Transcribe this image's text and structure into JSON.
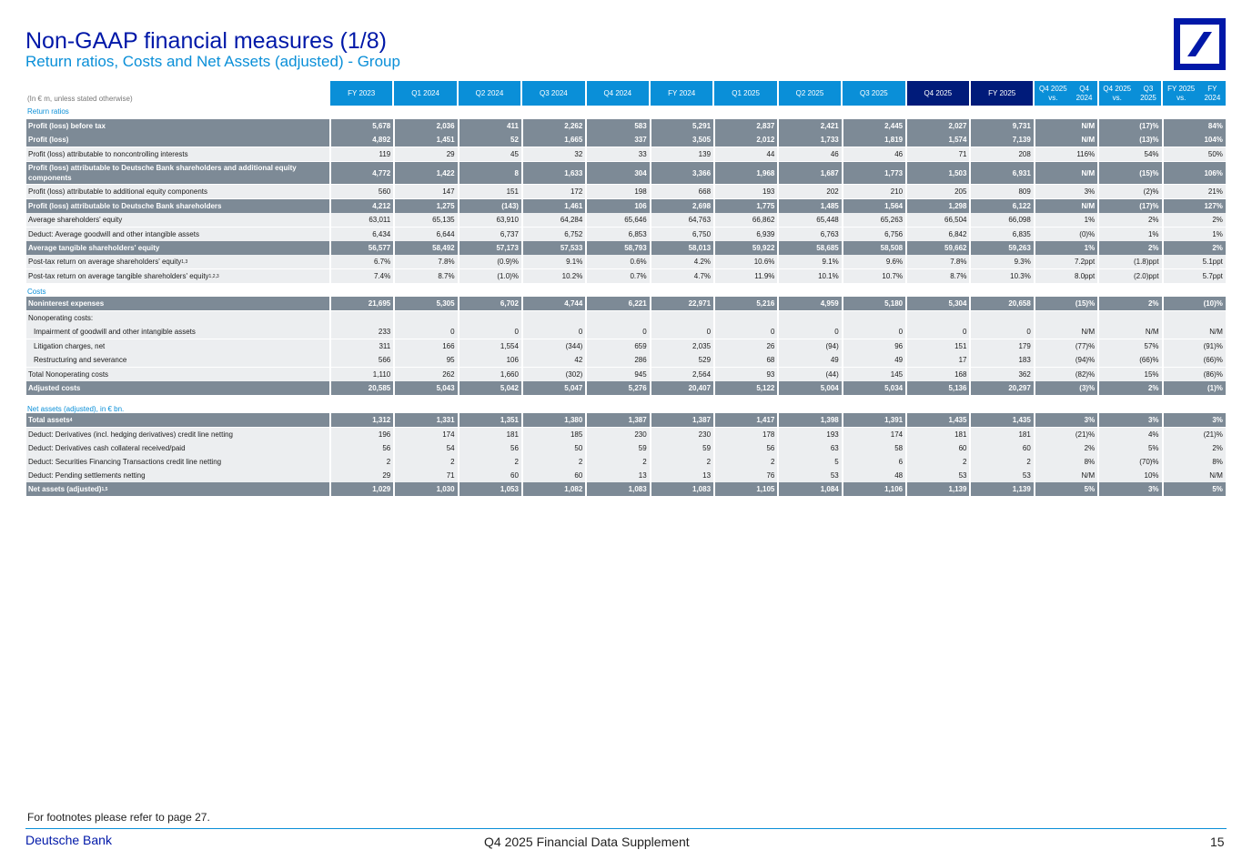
{
  "header": {
    "title": "Non-GAAP financial measures (1/8)",
    "subtitle": "Return ratios, Costs and Net Assets (adjusted) - Group",
    "unit_note": "(In € m, unless stated otherwise)"
  },
  "columns": [
    "FY 2023",
    "Q1 2024",
    "Q2 2024",
    "Q3 2024",
    "Q4 2024",
    "FY 2024",
    "Q1 2025",
    "Q2 2025",
    "Q3 2025",
    "Q4 2025",
    "FY 2025",
    [
      "Q4 2025 vs.",
      "Q4 2024"
    ],
    [
      "Q4 2025 vs.",
      "Q3 2025"
    ],
    [
      "FY 2025 vs.",
      "FY 2024"
    ]
  ],
  "sections": {
    "return_ratios": "Return ratios",
    "costs": "Costs",
    "net_assets": "Net assets (adjusted), in € bn."
  },
  "rows": [
    {
      "label": "Profit (loss) before tax",
      "style": "bold",
      "values": [
        "5,678",
        "2,036",
        "411",
        "2,262",
        "583",
        "5,291",
        "2,837",
        "2,421",
        "2,445",
        "2,027",
        "9,731",
        "N/M",
        "(17)%",
        "84%"
      ]
    },
    {
      "label": "Profit (loss)",
      "style": "bold",
      "values": [
        "4,892",
        "1,451",
        "52",
        "1,665",
        "337",
        "3,505",
        "2,012",
        "1,733",
        "1,819",
        "1,574",
        "7,139",
        "N/M",
        "(13)%",
        "104%"
      ]
    },
    {
      "label": "Profit (loss) attributable to noncontrolling interests",
      "style": "light",
      "values": [
        "119",
        "29",
        "45",
        "32",
        "33",
        "139",
        "44",
        "46",
        "46",
        "71",
        "208",
        "116%",
        "54%",
        "50%"
      ]
    },
    {
      "label": "Profit (loss) attributable to Deutsche Bank shareholders and additional equity components",
      "style": "bold",
      "tall": true,
      "values": [
        "4,772",
        "1,422",
        "8",
        "1,633",
        "304",
        "3,366",
        "1,968",
        "1,687",
        "1,773",
        "1,503",
        "6,931",
        "N/M",
        "(15)%",
        "106%"
      ]
    },
    {
      "label": "Profit (loss) attributable to additional equity components",
      "style": "light",
      "values": [
        "560",
        "147",
        "151",
        "172",
        "198",
        "668",
        "193",
        "202",
        "210",
        "205",
        "809",
        "3%",
        "(2)%",
        "21%"
      ]
    },
    {
      "label": "Profit (loss) attributable to Deutsche Bank shareholders",
      "style": "bold",
      "values": [
        "4,212",
        "1,275",
        "(143)",
        "1,461",
        "106",
        "2,698",
        "1,775",
        "1,485",
        "1,564",
        "1,298",
        "6,122",
        "N/M",
        "(17)%",
        "127%"
      ]
    },
    {
      "label": "Average shareholders' equity",
      "style": "light",
      "values": [
        "63,011",
        "65,135",
        "63,910",
        "64,284",
        "65,646",
        "64,763",
        "66,862",
        "65,448",
        "65,263",
        "66,504",
        "66,098",
        "1%",
        "2%",
        "2%"
      ]
    },
    {
      "label": "Deduct: Average goodwill and other intangible assets",
      "style": "light",
      "values": [
        "6,434",
        "6,644",
        "6,737",
        "6,752",
        "6,853",
        "6,750",
        "6,939",
        "6,763",
        "6,756",
        "6,842",
        "6,835",
        "(0)%",
        "1%",
        "1%"
      ]
    },
    {
      "label": "Average tangible shareholders' equity",
      "style": "bold",
      "values": [
        "56,577",
        "58,492",
        "57,173",
        "57,533",
        "58,793",
        "58,013",
        "59,922",
        "58,685",
        "58,508",
        "59,662",
        "59,263",
        "1%",
        "2%",
        "2%"
      ]
    },
    {
      "label": "Post-tax return on average shareholders' equity",
      "sup": "1,3",
      "style": "light",
      "values": [
        "6.7%",
        "7.8%",
        "(0.9)%",
        "9.1%",
        "0.6%",
        "4.2%",
        "10.6%",
        "9.1%",
        "9.6%",
        "7.8%",
        "9.3%",
        "7.2ppt",
        "(1.8)ppt",
        "5.1ppt"
      ]
    },
    {
      "label": "Post-tax return on average tangible shareholders' equity",
      "sup": "1,2,3",
      "style": "light",
      "values": [
        "7.4%",
        "8.7%",
        "(1.0)%",
        "10.2%",
        "0.7%",
        "4.7%",
        "11.9%",
        "10.1%",
        "10.7%",
        "8.7%",
        "10.3%",
        "8.0ppt",
        "(2.0)ppt",
        "5.7ppt"
      ]
    },
    {
      "label": "Noninterest expenses",
      "style": "bold",
      "values": [
        "21,695",
        "5,305",
        "6,702",
        "4,744",
        "6,221",
        "22,971",
        "5,216",
        "4,959",
        "5,180",
        "5,304",
        "20,658",
        "(15)%",
        "2%",
        "(10)%"
      ]
    },
    {
      "label": "Nonoperating costs:",
      "style": "empty",
      "values": [
        "",
        "",
        "",
        "",
        "",
        "",
        "",
        "",
        "",
        "",
        "",
        "",
        "",
        ""
      ]
    },
    {
      "label": "Impairment of goodwill and other intangible assets",
      "style": "light",
      "indent": true,
      "values": [
        "233",
        "0",
        "0",
        "0",
        "0",
        "0",
        "0",
        "0",
        "0",
        "0",
        "0",
        "N/M",
        "N/M",
        "N/M"
      ]
    },
    {
      "label": "Litigation charges, net",
      "style": "light",
      "indent": true,
      "values": [
        "311",
        "166",
        "1,554",
        "(344)",
        "659",
        "2,035",
        "26",
        "(94)",
        "96",
        "151",
        "179",
        "(77)%",
        "57%",
        "(91)%"
      ]
    },
    {
      "label": "Restructuring and severance",
      "style": "light",
      "indent": true,
      "values": [
        "566",
        "95",
        "106",
        "42",
        "286",
        "529",
        "68",
        "49",
        "49",
        "17",
        "183",
        "(94)%",
        "(66)%",
        "(66)%"
      ]
    },
    {
      "label": "Total Nonoperating costs",
      "style": "light",
      "values": [
        "1,110",
        "262",
        "1,660",
        "(302)",
        "945",
        "2,564",
        "93",
        "(44)",
        "145",
        "168",
        "362",
        "(82)%",
        "15%",
        "(86)%"
      ]
    },
    {
      "label": "Adjusted costs",
      "style": "bold",
      "values": [
        "20,585",
        "5,043",
        "5,042",
        "5,047",
        "5,276",
        "20,407",
        "5,122",
        "5,004",
        "5,034",
        "5,136",
        "20,297",
        "(3)%",
        "2%",
        "(1)%"
      ]
    },
    {
      "label": "Total assets",
      "sup": "4",
      "style": "bold",
      "values": [
        "1,312",
        "1,331",
        "1,351",
        "1,380",
        "1,387",
        "1,387",
        "1,417",
        "1,398",
        "1,391",
        "1,435",
        "1,435",
        "3%",
        "3%",
        "3%"
      ]
    },
    {
      "label": "Deduct: Derivatives (incl. hedging derivatives) credit line netting",
      "style": "light",
      "values": [
        "196",
        "174",
        "181",
        "185",
        "230",
        "230",
        "178",
        "193",
        "174",
        "181",
        "181",
        "(21)%",
        "4%",
        "(21)%"
      ]
    },
    {
      "label": "Deduct: Derivatives cash collateral received/paid",
      "style": "light",
      "values": [
        "56",
        "54",
        "56",
        "50",
        "59",
        "59",
        "56",
        "63",
        "58",
        "60",
        "60",
        "2%",
        "5%",
        "2%"
      ]
    },
    {
      "label": "Deduct: Securities Financing Transactions credit line netting",
      "style": "light",
      "values": [
        "2",
        "2",
        "2",
        "2",
        "2",
        "2",
        "2",
        "5",
        "6",
        "2",
        "2",
        "8%",
        "(70)%",
        "8%"
      ]
    },
    {
      "label": "Deduct: Pending settlements netting",
      "style": "light",
      "values": [
        "29",
        "71",
        "60",
        "60",
        "13",
        "13",
        "76",
        "53",
        "48",
        "53",
        "53",
        "N/M",
        "10%",
        "N/M"
      ]
    },
    {
      "label": "Net assets (adjusted)",
      "sup": "1,5",
      "style": "bold",
      "values": [
        "1,029",
        "1,030",
        "1,053",
        "1,082",
        "1,083",
        "1,083",
        "1,105",
        "1,084",
        "1,106",
        "1,139",
        "1,139",
        "5%",
        "3%",
        "5%"
      ]
    }
  ],
  "footer": {
    "note": "For footnotes please refer to page 27.",
    "brand": "Deutsche Bank",
    "document": "Q4 2025 Financial Data Supplement",
    "page": "15"
  },
  "colors": {
    "accent": "#0a8fd8",
    "brand": "#0018a8",
    "bold_row": "#7d8a96",
    "light_row": "#eceef0",
    "dark_header": "#001b7a"
  }
}
